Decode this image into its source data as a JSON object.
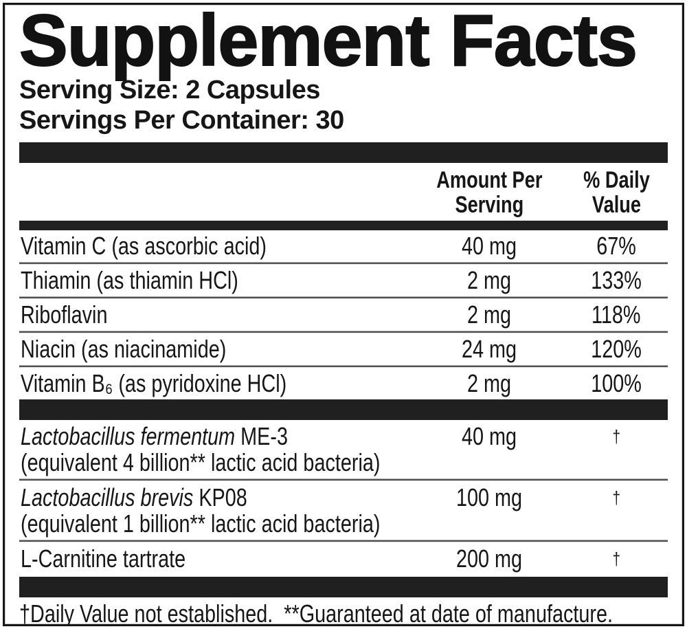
{
  "label": {
    "title": "Supplement Facts",
    "serving_size": "Serving Size: 2 Capsules",
    "servings_per_container": "Servings Per Container: 30",
    "columns": {
      "amount": [
        "Amount Per",
        "Serving"
      ],
      "daily_value": [
        "% Daily",
        "Value"
      ]
    },
    "nutrients": [
      {
        "name": "Vitamin C (as ascorbic acid)",
        "amount": "40 mg",
        "dv": "67%"
      },
      {
        "name": "Thiamin (as thiamin HCl)",
        "amount": "2 mg",
        "dv": "133%"
      },
      {
        "name": "Riboflavin",
        "amount": "2 mg",
        "dv": "118%"
      },
      {
        "name": "Niacin (as niacinamide)",
        "amount": "24 mg",
        "dv": "120%"
      },
      {
        "name": "Vitamin B₆ (as pyridoxine HCl)",
        "amount": "2 mg",
        "dv": "100%"
      }
    ],
    "other_ingredients": [
      {
        "name_italic": "Lactobacillus fermentum",
        "name_rest": " ME-3",
        "subtext": "(equivalent 4 billion** lactic acid bacteria)",
        "amount": "40 mg",
        "dv": "†"
      },
      {
        "name_italic": "Lactobacillus brevis",
        "name_rest": " KP08",
        "subtext": "(equivalent 1 billion** lactic acid bacteria)",
        "amount": "100 mg",
        "dv": "†"
      }
    ],
    "last_ingredient": {
      "name": "L-Carnitine tartrate",
      "amount": "200 mg",
      "dv": "†"
    },
    "footnote": "†Daily Value not established.  **Guaranteed at date of manufacture.",
    "colors": {
      "bar": "#202020",
      "text": "#161616",
      "background": "#ffffff"
    }
  }
}
